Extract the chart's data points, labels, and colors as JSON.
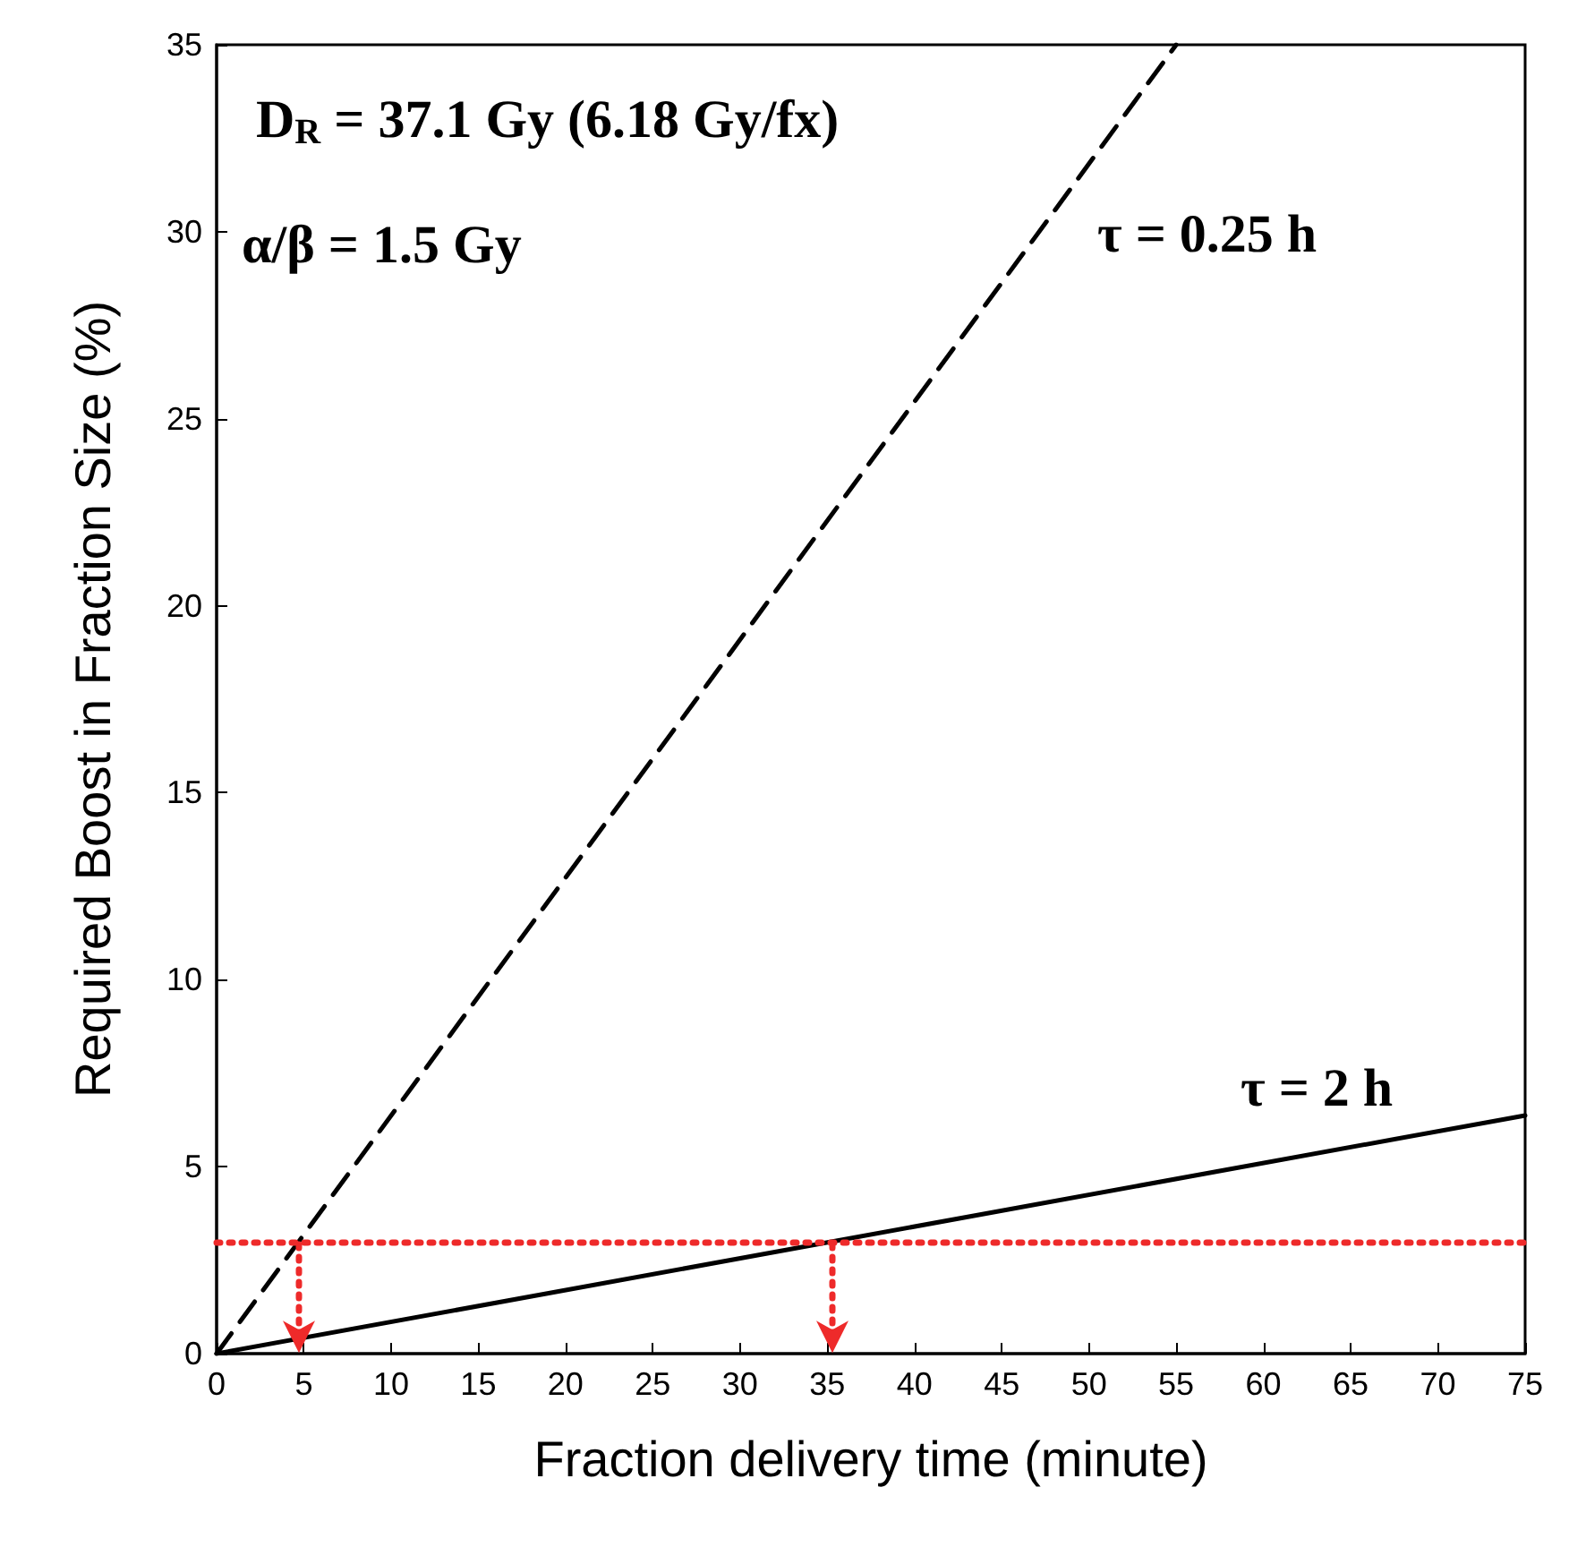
{
  "chart_data": {
    "type": "line",
    "xlabel": "Fraction delivery time (minute)",
    "ylabel": "Required Boost in Fraction Size (%)",
    "xlim": [
      0,
      75
    ],
    "xticks": [
      0,
      5,
      10,
      15,
      20,
      25,
      30,
      35,
      40,
      45,
      50,
      55,
      60,
      65,
      70,
      75
    ],
    "ylim": [
      0,
      35
    ],
    "yticks": [
      0,
      5,
      10,
      15,
      20,
      25,
      30,
      35
    ],
    "grid": false,
    "marker": "none",
    "series": [
      {
        "type": "line",
        "color": "#000000",
        "line_style": "dashed",
        "x": [
          0,
          55
        ],
        "values": [
          0,
          35
        ]
      },
      {
        "type": "line",
        "color": "#000000",
        "line_style": "solid",
        "x": [
          0,
          75
        ],
        "values": [
          0,
          6.37
        ]
      }
    ],
    "ref_lines": [
      {
        "axis": "y",
        "value": 3,
        "color": "#ee2a2a",
        "line_style": "dotted"
      }
    ],
    "annotations": [
      "D$_{R}$ = 37.1 Gy (6.18 Gy/fx)",
      "α/β = 1.5 Gy",
      "τ = 0.25 h",
      "τ = 2 h"
    ]
  }
}
